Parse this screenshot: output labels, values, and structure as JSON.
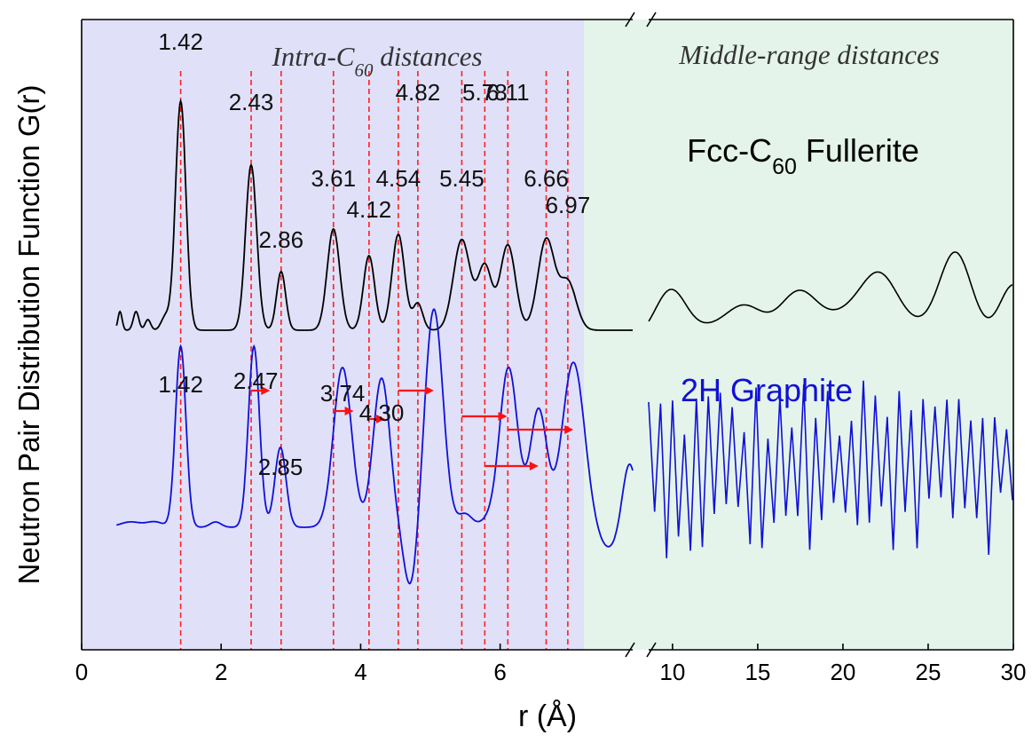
{
  "chart_data": {
    "type": "line",
    "xlabel": "r (Å)",
    "ylabel": "Neutron Pair Distribution Function G(r)",
    "axis": {
      "segment1": {
        "xlim": [
          0,
          7.9
        ],
        "ticks": [
          0,
          2,
          4,
          6
        ],
        "tick_labels": [
          "0",
          "2",
          "4",
          "6"
        ]
      },
      "segment2": {
        "xlim": [
          8.6,
          30
        ],
        "ticks": [
          10,
          15,
          20,
          25,
          30
        ],
        "tick_labels": [
          "10",
          "15",
          "20",
          "25",
          "30"
        ]
      },
      "broken": true
    },
    "regions": [
      {
        "name": "intra",
        "label_parts": [
          "Intra-C",
          "60",
          " distances"
        ],
        "x_range": [
          0,
          7.2
        ],
        "color": "#e0e0f9"
      },
      {
        "name": "middle",
        "label": "Middle-range distances",
        "x_range": [
          7.2,
          30
        ],
        "color": "#e4f4ea"
      }
    ],
    "series": [
      {
        "name_parts": [
          "Fcc-C",
          "60",
          " Fullerite"
        ],
        "color": "#000000",
        "baseline": 0.24,
        "offset": 0.72,
        "peaks": [
          [
            0.55,
            0.07,
            0.03
          ],
          [
            0.78,
            0.07,
            0.04
          ],
          [
            0.95,
            0.04,
            0.04
          ],
          [
            1.2,
            0.05,
            0.06
          ],
          [
            1.42,
            0.86,
            0.075
          ],
          [
            2.43,
            0.62,
            0.08
          ],
          [
            2.86,
            0.22,
            0.065
          ],
          [
            3.61,
            0.38,
            0.09
          ],
          [
            4.12,
            0.28,
            0.08
          ],
          [
            4.54,
            0.36,
            0.09
          ],
          [
            4.82,
            0.1,
            0.07
          ],
          [
            5.45,
            0.34,
            0.12
          ],
          [
            5.78,
            0.24,
            0.1
          ],
          [
            6.11,
            0.32,
            0.11
          ],
          [
            6.66,
            0.34,
            0.12
          ],
          [
            6.97,
            0.18,
            0.12
          ]
        ],
        "segment2_peaks": [
          [
            9.9,
            0.18,
            0.9
          ],
          [
            12.0,
            0.03,
            1.0
          ],
          [
            14.2,
            0.12,
            1.1
          ],
          [
            17.4,
            0.17,
            1.1
          ],
          [
            20.2,
            0.08,
            1.3
          ],
          [
            22.2,
            0.22,
            1.1
          ],
          [
            24.5,
            0.03,
            1.0
          ],
          [
            26.6,
            0.32,
            0.95
          ],
          [
            30.0,
            0.2,
            0.8
          ]
        ]
      },
      {
        "name": "2H Graphite",
        "color": "#1010d8",
        "baseline": 0.22,
        "offset": 0.0,
        "peaks": [
          [
            0.7,
            0.02,
            0.15
          ],
          [
            1.05,
            0.02,
            0.12
          ],
          [
            1.42,
            0.68,
            0.075
          ],
          [
            1.92,
            0.02,
            0.08
          ],
          [
            2.47,
            0.68,
            0.08
          ],
          [
            2.85,
            0.3,
            0.08
          ],
          [
            3.74,
            0.6,
            0.13
          ],
          [
            4.3,
            0.56,
            0.12
          ],
          [
            4.72,
            -0.24,
            0.1
          ],
          [
            5.05,
            0.82,
            0.13
          ],
          [
            5.5,
            0.05,
            0.1
          ],
          [
            5.8,
            0.02,
            0.1
          ],
          [
            6.12,
            0.6,
            0.13
          ],
          [
            6.55,
            0.44,
            0.12
          ],
          [
            7.05,
            0.62,
            0.16
          ],
          [
            7.55,
            -0.08,
            0.16
          ],
          [
            7.85,
            0.25,
            0.1
          ]
        ],
        "segment2_spacing": 0.35,
        "segment2_amplitude": 0.75
      }
    ],
    "peak_markers": [
      1.42,
      2.43,
      2.86,
      3.61,
      4.12,
      4.54,
      4.82,
      5.45,
      5.78,
      6.11,
      6.66,
      6.97
    ],
    "fullerite_labels": [
      {
        "text": "1.42",
        "x": 1.42
      },
      {
        "text": "2.43",
        "x": 2.43
      },
      {
        "text": "2.86",
        "x": 2.86
      },
      {
        "text": "3.61",
        "x": 3.61
      },
      {
        "text": "4.12",
        "x": 4.12
      },
      {
        "text": "4.54",
        "x": 4.54
      },
      {
        "text": "4.82",
        "x": 4.82
      },
      {
        "text": "5.45",
        "x": 5.45
      },
      {
        "text": "5.78",
        "x": 5.78
      },
      {
        "text": "6.11",
        "x": 6.11
      },
      {
        "text": "6.66",
        "x": 6.66
      },
      {
        "text": "6.97",
        "x": 6.97
      }
    ],
    "graphite_labels": [
      {
        "text": "1.42",
        "x": 1.42
      },
      {
        "text": "2.47",
        "x": 2.47
      },
      {
        "text": "2.85",
        "x": 2.85
      },
      {
        "text": "3.74",
        "x": 3.74
      },
      {
        "text": "4.30",
        "x": 4.3
      }
    ],
    "shift_arrows": [
      [
        2.43,
        2.7
      ],
      [
        3.61,
        3.9
      ],
      [
        4.12,
        4.35
      ],
      [
        4.54,
        5.05
      ],
      [
        5.45,
        6.1
      ],
      [
        5.78,
        6.55
      ],
      [
        6.11,
        7.05
      ]
    ],
    "grid": false,
    "legend": "inline"
  }
}
